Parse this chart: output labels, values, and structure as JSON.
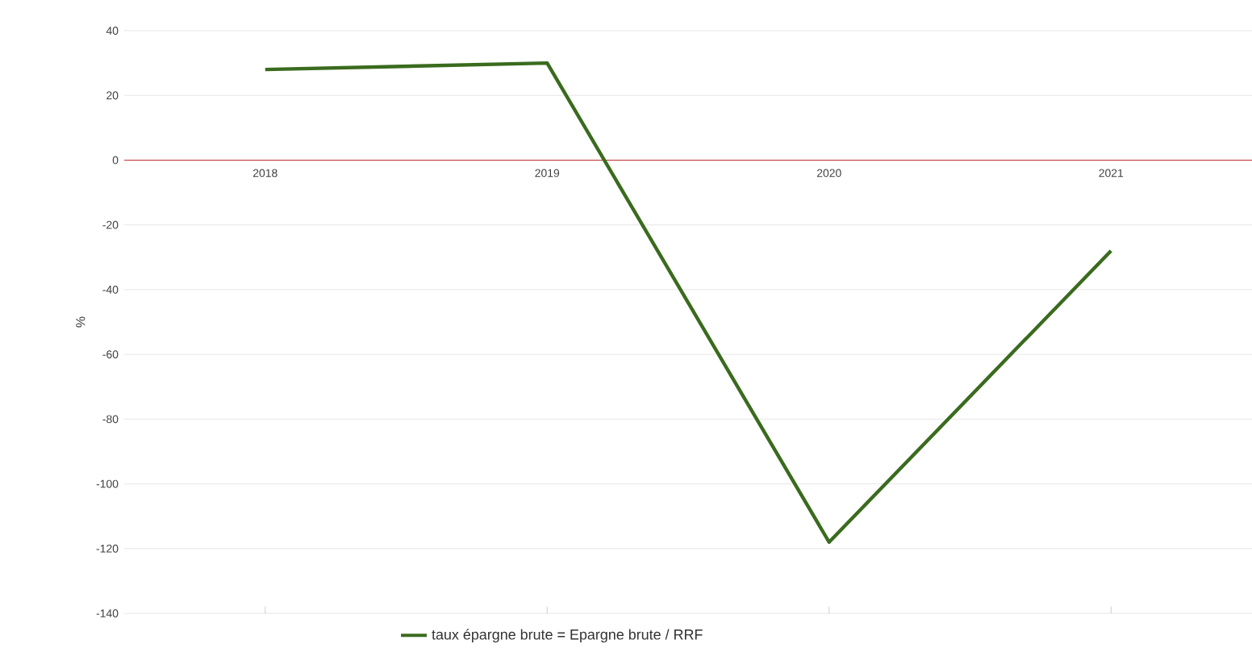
{
  "chart_data": {
    "type": "line",
    "categories": [
      "2018",
      "2019",
      "2020",
      "2021"
    ],
    "series": [
      {
        "name": "taux épargne brute = Epargne brute / RRF",
        "color": "#3a6b1e",
        "values": [
          28,
          30,
          -118,
          -28
        ]
      }
    ],
    "ylabel": "%",
    "ylim": [
      -140,
      40
    ],
    "yticks": [
      -140,
      -120,
      -100,
      -80,
      -60,
      -40,
      -20,
      0,
      20,
      40
    ],
    "grid": "y",
    "legend": "bottom",
    "marker": "none",
    "line_style": "solid"
  }
}
